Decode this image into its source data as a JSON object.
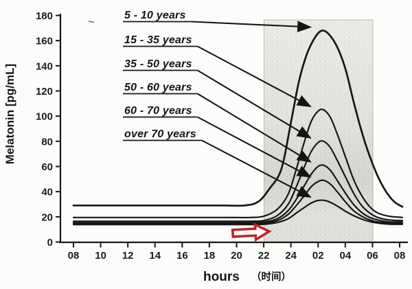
{
  "chart_data": {
    "type": "line",
    "title": "",
    "ylabel": "Melatonin [pg/mL]",
    "xlabel": "hours",
    "xlabel_cn": "（时间）",
    "ylim": [
      0,
      180
    ],
    "y_tick_values": [
      0,
      20,
      40,
      60,
      80,
      100,
      120,
      140,
      160,
      180
    ],
    "x_tick_labels": [
      "08",
      "10",
      "12",
      "14",
      "16",
      "18",
      "20",
      "22",
      "24",
      "02",
      "04",
      "06",
      "08"
    ],
    "x_span_hours": [
      8,
      32
    ],
    "grid": false,
    "shaded_region": {
      "from_label": "22",
      "to_label": "06"
    },
    "series": [
      {
        "name": "5 - 10 years",
        "baseline_pg_ml": 29,
        "peak_pg_ml": 168,
        "peak_time": "02:00",
        "points_hour_pgml": [
          [
            8,
            29
          ],
          [
            12,
            29
          ],
          [
            16,
            29
          ],
          [
            19,
            29
          ],
          [
            20.6,
            29
          ],
          [
            21.6,
            32
          ],
          [
            22.4,
            42
          ],
          [
            23.3,
            58
          ],
          [
            24,
            95
          ],
          [
            24.6,
            128
          ],
          [
            25.2,
            150
          ],
          [
            25.8,
            163
          ],
          [
            26.3,
            168
          ],
          [
            26.8,
            165
          ],
          [
            27.4,
            155
          ],
          [
            28,
            138
          ],
          [
            28.6,
            112
          ],
          [
            29.2,
            88
          ],
          [
            29.8,
            68
          ],
          [
            30.4,
            52
          ],
          [
            31,
            40
          ],
          [
            31.6,
            32
          ],
          [
            32.2,
            28
          ]
        ]
      },
      {
        "name": "15 - 35 years",
        "baseline_pg_ml": 19.5,
        "peak_pg_ml": 105,
        "peak_time": "02:00",
        "points_hour_pgml": [
          [
            8,
            19.5
          ],
          [
            12,
            19.5
          ],
          [
            16,
            19.5
          ],
          [
            19,
            19.5
          ],
          [
            21,
            19.5
          ],
          [
            22,
            20.5
          ],
          [
            23,
            26
          ],
          [
            23.8,
            38
          ],
          [
            24.4,
            58
          ],
          [
            25,
            80
          ],
          [
            25.5,
            96
          ],
          [
            26,
            104
          ],
          [
            26.4,
            105
          ],
          [
            26.9,
            99
          ],
          [
            27.4,
            86
          ],
          [
            28,
            68
          ],
          [
            28.6,
            50
          ],
          [
            29.2,
            37
          ],
          [
            29.8,
            28
          ],
          [
            30.4,
            23
          ],
          [
            31.2,
            20.5
          ],
          [
            32.2,
            19.5
          ]
        ]
      },
      {
        "name": "35 - 50 years",
        "baseline_pg_ml": 16.5,
        "peak_pg_ml": 80,
        "peak_time": "02:00",
        "points_hour_pgml": [
          [
            8,
            16.5
          ],
          [
            12,
            16.5
          ],
          [
            16,
            16.5
          ],
          [
            19,
            16.5
          ],
          [
            21,
            16.5
          ],
          [
            22,
            17
          ],
          [
            23,
            21
          ],
          [
            23.8,
            30
          ],
          [
            24.4,
            44
          ],
          [
            25,
            60
          ],
          [
            25.5,
            72
          ],
          [
            26,
            79
          ],
          [
            26.4,
            80
          ],
          [
            26.9,
            75
          ],
          [
            27.4,
            65
          ],
          [
            28,
            52
          ],
          [
            28.6,
            39
          ],
          [
            29.2,
            29
          ],
          [
            29.8,
            23
          ],
          [
            30.4,
            19.5
          ],
          [
            31.2,
            17.5
          ],
          [
            32.2,
            17
          ]
        ]
      },
      {
        "name": "50 - 60 years",
        "baseline_pg_ml": 15.4,
        "peak_pg_ml": 61,
        "peak_time": "02:00",
        "points_hour_pgml": [
          [
            8,
            15.4
          ],
          [
            12,
            15.4
          ],
          [
            16,
            15.4
          ],
          [
            19,
            15.4
          ],
          [
            21,
            15.4
          ],
          [
            22,
            15.8
          ],
          [
            23,
            18.5
          ],
          [
            23.8,
            25
          ],
          [
            24.4,
            34
          ],
          [
            25,
            45
          ],
          [
            25.5,
            54
          ],
          [
            26,
            60
          ],
          [
            26.4,
            61
          ],
          [
            26.9,
            57
          ],
          [
            27.4,
            49
          ],
          [
            28,
            39
          ],
          [
            28.6,
            30
          ],
          [
            29.2,
            23.5
          ],
          [
            29.8,
            19.5
          ],
          [
            30.4,
            17.5
          ],
          [
            31.2,
            16
          ],
          [
            32.2,
            15.8
          ]
        ]
      },
      {
        "name": "60 - 70 years",
        "baseline_pg_ml": 14.6,
        "peak_pg_ml": 49,
        "peak_time": "02:00",
        "points_hour_pgml": [
          [
            8,
            14.6
          ],
          [
            12,
            14.6
          ],
          [
            16,
            14.6
          ],
          [
            19,
            14.6
          ],
          [
            21,
            14.6
          ],
          [
            22,
            15
          ],
          [
            23,
            17
          ],
          [
            23.8,
            22
          ],
          [
            24.4,
            29
          ],
          [
            25,
            37
          ],
          [
            25.5,
            44
          ],
          [
            26,
            48
          ],
          [
            26.4,
            49
          ],
          [
            26.9,
            46
          ],
          [
            27.4,
            40
          ],
          [
            28,
            32
          ],
          [
            28.6,
            25
          ],
          [
            29.2,
            20.5
          ],
          [
            29.8,
            17.5
          ],
          [
            30.4,
            16
          ],
          [
            31.2,
            15
          ],
          [
            32.2,
            14.8
          ]
        ]
      },
      {
        "name": "over 70 years",
        "baseline_pg_ml": 13.8,
        "peak_pg_ml": 33,
        "peak_time": "02:00",
        "points_hour_pgml": [
          [
            8,
            13.8
          ],
          [
            12,
            13.8
          ],
          [
            16,
            13.8
          ],
          [
            19,
            13.8
          ],
          [
            21,
            13.8
          ],
          [
            22,
            14
          ],
          [
            23,
            15.5
          ],
          [
            23.8,
            18.5
          ],
          [
            24.4,
            23
          ],
          [
            25,
            27.5
          ],
          [
            25.5,
            31
          ],
          [
            26,
            33
          ],
          [
            26.5,
            33
          ],
          [
            27,
            31
          ],
          [
            27.5,
            28
          ],
          [
            28,
            24.5
          ],
          [
            28.6,
            21
          ],
          [
            29.2,
            18.2
          ],
          [
            29.8,
            16.2
          ],
          [
            30.4,
            15
          ],
          [
            31.2,
            14.2
          ],
          [
            32.2,
            14
          ]
        ]
      }
    ]
  },
  "annotations": {
    "red_arrow": {
      "shape": "hollow-right-arrow",
      "position": "near 21:00 just above x-axis"
    }
  },
  "colors": {
    "curve": "#161616",
    "shade_base": "#ecebe7",
    "shade_border": "#b9b7b1",
    "red_arrow": "#bf2428",
    "background": "#fcfcfa"
  }
}
